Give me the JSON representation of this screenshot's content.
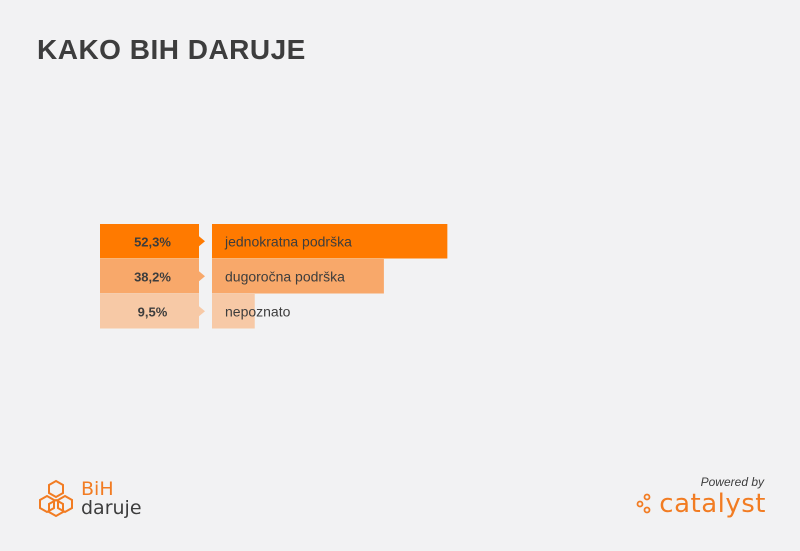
{
  "title": "KAKO BIH DARUJE",
  "chart_data": {
    "type": "bar",
    "orientation": "horizontal",
    "categories": [
      "jednokratna podrška",
      "dugoročna podrška",
      "nepoznato"
    ],
    "values": [
      52.3,
      38.2,
      9.5
    ],
    "value_labels": [
      "52,3%",
      "38,2%",
      "9,5%"
    ],
    "unit": "%",
    "xlim": [
      0,
      100
    ],
    "grid": false,
    "legend": "none",
    "colors": [
      "#ff7a00",
      "#f8a86a",
      "#f7c9a6"
    ]
  },
  "branding": {
    "left_logo_top": "BiH",
    "left_logo_bottom": "daruje",
    "powered_by": "Powered by",
    "right_logo": "catalyst",
    "accent": "#f27c22"
  }
}
